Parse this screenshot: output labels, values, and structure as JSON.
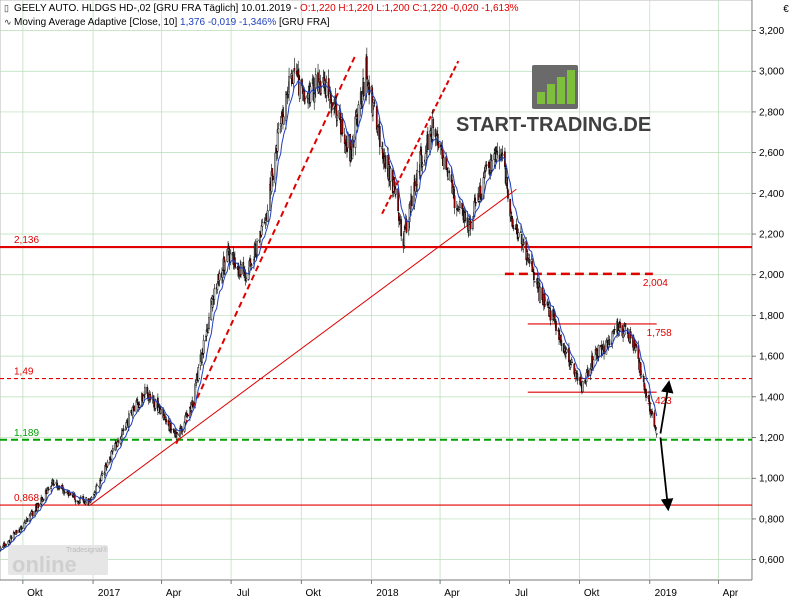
{
  "header": {
    "line1": {
      "instrument": "GEELY AUTO. HLDGS  HD-,02 [GRU FRA  Täglich] 10.01.2019 - ",
      "ohlc": "O:1,220  H:1,220  L:1,200  C:1,220  -0,020  -1,613%"
    },
    "line2": {
      "indicator": "Moving Average Adaptive [Close, 10] ",
      "value": "1,376  -0,019  -1,346%",
      "suffix": "  [GRU FRA]"
    },
    "candle_icon": "candlestick-icon",
    "line_icon": "line-chart-icon"
  },
  "currency_symbol": "€",
  "logos": {
    "start_trading_text": "START-TRADING.DE",
    "tradesignal_text": "Tradesignal®",
    "online_text": "online"
  },
  "colors": {
    "background": "#ffffff",
    "grid": "#b8dcb8",
    "candle_up": "#ffffff",
    "candle_down": "#c00000",
    "candle_outline": "#000000",
    "moving_average": "#1f3fbf",
    "level_red": "#e00000",
    "level_green": "#00a000",
    "axis_text": "#000000",
    "logo_green": "#7dbf3a",
    "logo_dark": "#404040"
  },
  "chart_data": {
    "type": "candlestick",
    "title": "GEELY AUTO. HLDGS  HD-,02 [GRU FRA  Täglich]",
    "y_unit": "€",
    "ylim": [
      0.5,
      3.35
    ],
    "y_ticks": [
      "0,600",
      "0,800",
      "1,000",
      "1,200",
      "1,400",
      "1,600",
      "1,800",
      "2,000",
      "2,200",
      "2,400",
      "2,600",
      "2,800",
      "3,000",
      "3,200"
    ],
    "x_range": [
      "2016-09-01",
      "2019-05-15"
    ],
    "x_ticks": [
      {
        "date": "2016-10-01",
        "label": "Okt"
      },
      {
        "date": "2017-01-01",
        "label": "2017"
      },
      {
        "date": "2017-04-01",
        "label": "Apr"
      },
      {
        "date": "2017-07-01",
        "label": "Jul"
      },
      {
        "date": "2017-10-01",
        "label": "Okt"
      },
      {
        "date": "2018-01-01",
        "label": "2018"
      },
      {
        "date": "2018-04-01",
        "label": "Apr"
      },
      {
        "date": "2018-07-01",
        "label": "Jul"
      },
      {
        "date": "2018-10-01",
        "label": "Okt"
      },
      {
        "date": "2019-01-01",
        "label": "2019"
      },
      {
        "date": "2019-04-01",
        "label": "Apr"
      }
    ],
    "grid": true,
    "price_anchors": [
      {
        "date": "2016-09-01",
        "close": 0.65
      },
      {
        "date": "2016-10-05",
        "close": 0.78
      },
      {
        "date": "2016-11-10",
        "close": 0.98
      },
      {
        "date": "2016-12-10",
        "close": 0.9
      },
      {
        "date": "2016-12-29",
        "close": 0.88
      },
      {
        "date": "2017-02-10",
        "close": 1.25
      },
      {
        "date": "2017-03-10",
        "close": 1.42
      },
      {
        "date": "2017-04-01",
        "close": 1.32
      },
      {
        "date": "2017-04-20",
        "close": 1.2
      },
      {
        "date": "2017-05-10",
        "close": 1.35
      },
      {
        "date": "2017-06-05",
        "close": 1.85
      },
      {
        "date": "2017-06-25",
        "close": 2.1
      },
      {
        "date": "2017-07-20",
        "close": 2.0
      },
      {
        "date": "2017-08-15",
        "close": 2.25
      },
      {
        "date": "2017-09-01",
        "close": 2.7
      },
      {
        "date": "2017-09-20",
        "close": 3.0
      },
      {
        "date": "2017-10-05",
        "close": 2.85
      },
      {
        "date": "2017-10-25",
        "close": 2.95
      },
      {
        "date": "2017-11-15",
        "close": 2.8
      },
      {
        "date": "2017-12-05",
        "close": 2.6
      },
      {
        "date": "2017-12-25",
        "close": 3.0
      },
      {
        "date": "2018-01-10",
        "close": 2.7
      },
      {
        "date": "2018-02-05",
        "close": 2.35
      },
      {
        "date": "2018-02-10",
        "close": 2.15
      },
      {
        "date": "2018-03-05",
        "close": 2.55
      },
      {
        "date": "2018-03-25",
        "close": 2.75
      },
      {
        "date": "2018-04-20",
        "close": 2.35
      },
      {
        "date": "2018-05-10",
        "close": 2.25
      },
      {
        "date": "2018-06-01",
        "close": 2.5
      },
      {
        "date": "2018-06-20",
        "close": 2.6
      },
      {
        "date": "2018-07-05",
        "close": 2.25
      },
      {
        "date": "2018-07-25",
        "close": 2.1
      },
      {
        "date": "2018-08-10",
        "close": 1.9
      },
      {
        "date": "2018-09-01",
        "close": 1.75
      },
      {
        "date": "2018-09-20",
        "close": 1.55
      },
      {
        "date": "2018-10-05",
        "close": 1.45
      },
      {
        "date": "2018-10-20",
        "close": 1.6
      },
      {
        "date": "2018-11-05",
        "close": 1.65
      },
      {
        "date": "2018-11-20",
        "close": 1.75
      },
      {
        "date": "2018-12-10",
        "close": 1.68
      },
      {
        "date": "2018-12-25",
        "close": 1.45
      },
      {
        "date": "2019-01-10",
        "close": 1.22
      }
    ],
    "moving_average": {
      "name": "Moving Average Adaptive [Close, 10]",
      "last_value": 1.376
    },
    "horizontal_levels": [
      {
        "value": 2.136,
        "label": "2,136",
        "style": "solid",
        "color": "red",
        "from": "2016-09-01",
        "to": "2019-05-15",
        "label_side": "left"
      },
      {
        "value": 1.49,
        "label": "1,49",
        "style": "dashed",
        "color": "red",
        "from": "2016-09-01",
        "to": "2019-05-15",
        "label_side": "left"
      },
      {
        "value": 1.189,
        "label": "1,189",
        "style": "dashed",
        "color": "green",
        "from": "2016-09-01",
        "to": "2019-05-15",
        "label_side": "left"
      },
      {
        "value": 0.868,
        "label": "0,868",
        "style": "solid",
        "color": "red",
        "from": "2016-09-01",
        "to": "2019-05-15",
        "label_side": "left"
      },
      {
        "value": 2.004,
        "label": "2,004",
        "style": "dashed",
        "color": "red",
        "from": "2018-06-25",
        "to": "2019-01-05",
        "label_side": "right"
      },
      {
        "value": 1.758,
        "label": "1,758",
        "style": "solid",
        "color": "red",
        "from": "2018-07-25",
        "to": "2019-01-10",
        "label_side": "right"
      },
      {
        "value": 1.423,
        "label": "1,423",
        "style": "solid",
        "color": "red",
        "from": "2018-07-25",
        "to": "2019-01-10",
        "label_side": "right"
      }
    ],
    "trend_lines": [
      {
        "from": {
          "date": "2016-12-29",
          "value": 0.87
        },
        "to": {
          "date": "2018-07-10",
          "value": 2.42
        },
        "style": "solid"
      },
      {
        "from": {
          "date": "2017-04-20",
          "value": 1.17
        },
        "to": {
          "date": "2017-12-10",
          "value": 3.07
        },
        "style": "dashed"
      },
      {
        "from": {
          "date": "2018-01-15",
          "value": 2.3
        },
        "to": {
          "date": "2018-04-25",
          "value": 3.05
        },
        "style": "dashed"
      }
    ],
    "arrows": [
      {
        "from": {
          "date": "2019-01-15",
          "value": 1.2
        },
        "to": {
          "date": "2019-01-25",
          "value": 0.85
        },
        "direction": "down"
      },
      {
        "from": {
          "date": "2019-01-15",
          "value": 1.22
        },
        "to": {
          "date": "2019-01-26",
          "value": 1.47
        },
        "direction": "up"
      }
    ]
  }
}
